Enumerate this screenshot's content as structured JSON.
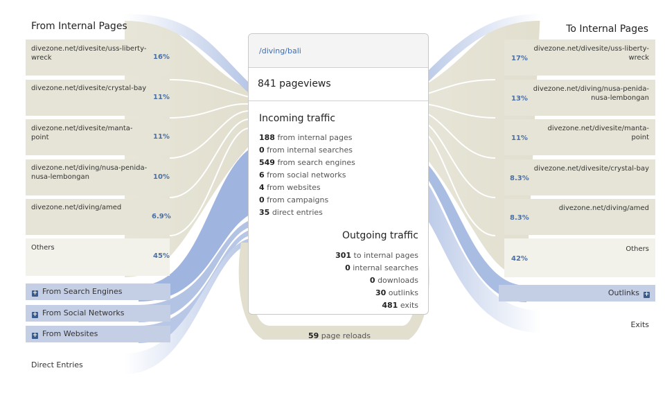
{
  "center": {
    "url": "/diving/bali",
    "pageviews": "841 pageviews",
    "incoming_title": "Incoming traffic",
    "incoming": [
      {
        "num": "188",
        "text": "from internal pages"
      },
      {
        "num": "0",
        "text": "from internal searches"
      },
      {
        "num": "549",
        "text": "from search engines"
      },
      {
        "num": "6",
        "text": "from social networks"
      },
      {
        "num": "4",
        "text": "from websites"
      },
      {
        "num": "0",
        "text": "from campaigns"
      },
      {
        "num": "35",
        "text": "direct entries"
      }
    ],
    "outgoing_title": "Outgoing traffic",
    "outgoing": [
      {
        "num": "301",
        "text": "to internal pages"
      },
      {
        "num": "0",
        "text": "internal searches"
      },
      {
        "num": "0",
        "text": "downloads"
      },
      {
        "num": "30",
        "text": "outlinks"
      },
      {
        "num": "481",
        "text": "exits"
      }
    ],
    "reloads_num": "59",
    "reloads_text": "page reloads"
  },
  "left": {
    "header": "From Internal Pages",
    "items": [
      {
        "label": "divezone.net/divesite/uss-liberty-wreck",
        "pct": "16%"
      },
      {
        "label": "divezone.net/divesite/crystal-bay",
        "pct": "11%"
      },
      {
        "label": "divezone.net/divesite/manta-point",
        "pct": "11%"
      },
      {
        "label": "divezone.net/diving/nusa-penida-nusa-lembongan",
        "pct": "10%"
      },
      {
        "label": "divezone.net/diving/amed",
        "pct": "6.9%"
      },
      {
        "label": "Others",
        "pct": "45%"
      }
    ],
    "sources": [
      {
        "label": "From Search Engines",
        "icon": "plus-icon"
      },
      {
        "label": "From Social Networks",
        "icon": "plus-icon"
      },
      {
        "label": "From Websites",
        "icon": "plus-icon"
      }
    ],
    "direct": "Direct Entries"
  },
  "right": {
    "header": "To Internal Pages",
    "items": [
      {
        "label": "divezone.net/divesite/uss-liberty-wreck",
        "pct": "17%"
      },
      {
        "label": "divezone.net/diving/nusa-penida-nusa-lembongan",
        "pct": "13%"
      },
      {
        "label": "divezone.net/divesite/manta-point",
        "pct": "11%"
      },
      {
        "label": "divezone.net/divesite/crystal-bay",
        "pct": "8.3%"
      },
      {
        "label": "divezone.net/diving/amed",
        "pct": "8.3%"
      },
      {
        "label": "Others",
        "pct": "42%"
      }
    ],
    "outlinks": "Outlinks",
    "exits": "Exits"
  },
  "colors": {
    "page_box": "#e6e4d6",
    "others_box": "#f2f1ea",
    "source_blue": "#c4cfe6",
    "flow_blue": "#a9bde3",
    "link_blue": "#3b6db1"
  }
}
